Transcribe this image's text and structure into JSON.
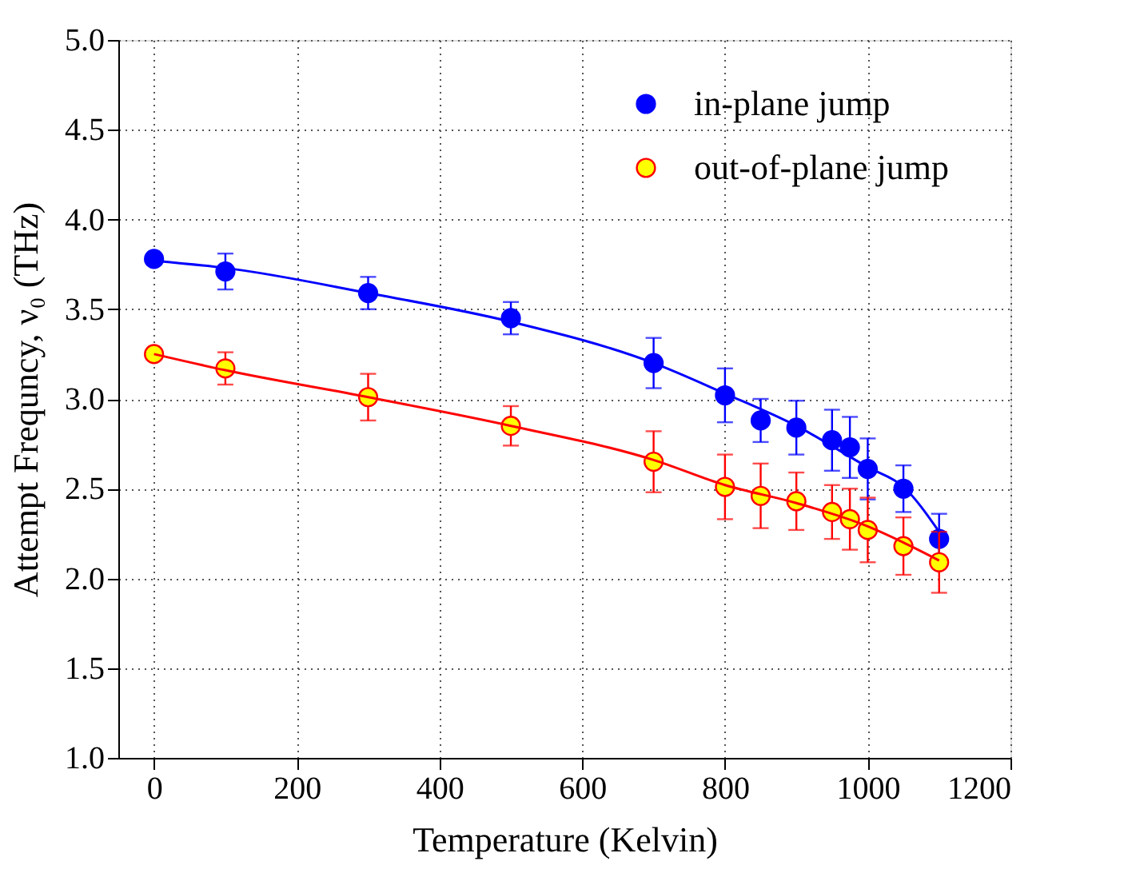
{
  "chart_data": {
    "type": "scatter",
    "xlabel": "Temperature (Kelvin)",
    "ylabel": "Attempt Frequncy, ν₀ (THz)",
    "x": [
      0,
      100,
      300,
      500,
      700,
      800,
      850,
      900,
      950,
      975,
      1000,
      1050,
      1100
    ],
    "series": [
      {
        "name": "in-plane jump",
        "color": "#0000ff",
        "values": [
          3.78,
          3.71,
          3.59,
          3.45,
          3.2,
          3.02,
          2.88,
          2.84,
          2.77,
          2.73,
          2.61,
          2.5,
          2.22
        ],
        "errors": [
          null,
          0.1,
          0.09,
          0.09,
          0.14,
          0.15,
          0.12,
          0.15,
          0.17,
          0.17,
          0.17,
          0.13,
          0.14
        ]
      },
      {
        "name": "out-of-plane jump",
        "color": "#ffff00",
        "values": [
          3.25,
          3.17,
          3.01,
          2.85,
          2.65,
          2.51,
          2.46,
          2.43,
          2.37,
          2.33,
          2.27,
          2.18,
          2.09
        ],
        "errors": [
          null,
          0.09,
          0.13,
          0.11,
          0.17,
          0.18,
          0.18,
          0.16,
          0.15,
          0.17,
          0.18,
          0.16,
          0.17
        ]
      },
      {
        "type": "line",
        "marker": "none",
        "color": "#0000ff",
        "x": [
          0,
          100,
          300,
          500,
          700,
          800,
          900,
          1000,
          1050,
          1100
        ],
        "values": [
          3.77,
          3.73,
          3.59,
          3.43,
          3.2,
          3.03,
          2.85,
          2.62,
          2.51,
          2.26
        ]
      },
      {
        "type": "line",
        "marker": "none",
        "color": "#ff0000",
        "x": [
          0,
          100,
          300,
          500,
          700,
          800,
          900,
          1000,
          1050,
          1100
        ],
        "values": [
          3.25,
          3.16,
          3.01,
          2.85,
          2.66,
          2.52,
          2.42,
          2.29,
          2.2,
          2.1
        ]
      }
    ],
    "xlim": [
      -50,
      1200
    ],
    "xticks": [
      0,
      200,
      400,
      600,
      800,
      1000,
      1200
    ],
    "ylim": [
      1.0,
      5.0
    ],
    "yticks": [
      {
        "value": 1.0,
        "label": "1.0"
      },
      {
        "value": 1.5,
        "label": "1.5"
      },
      {
        "value": 2.0,
        "label": "2.0"
      },
      {
        "value": 2.5,
        "label": "2.5"
      },
      {
        "value": 3.0,
        "label": "3.0"
      },
      {
        "value": 3.5,
        "label": "3.5"
      },
      {
        "value": 4.0,
        "label": "4.0"
      },
      {
        "value": 4.5,
        "label": "4.5"
      },
      {
        "value": 5.0,
        "label": "5.0"
      }
    ],
    "grid": true,
    "legend": "top right",
    "marker": "circle"
  }
}
